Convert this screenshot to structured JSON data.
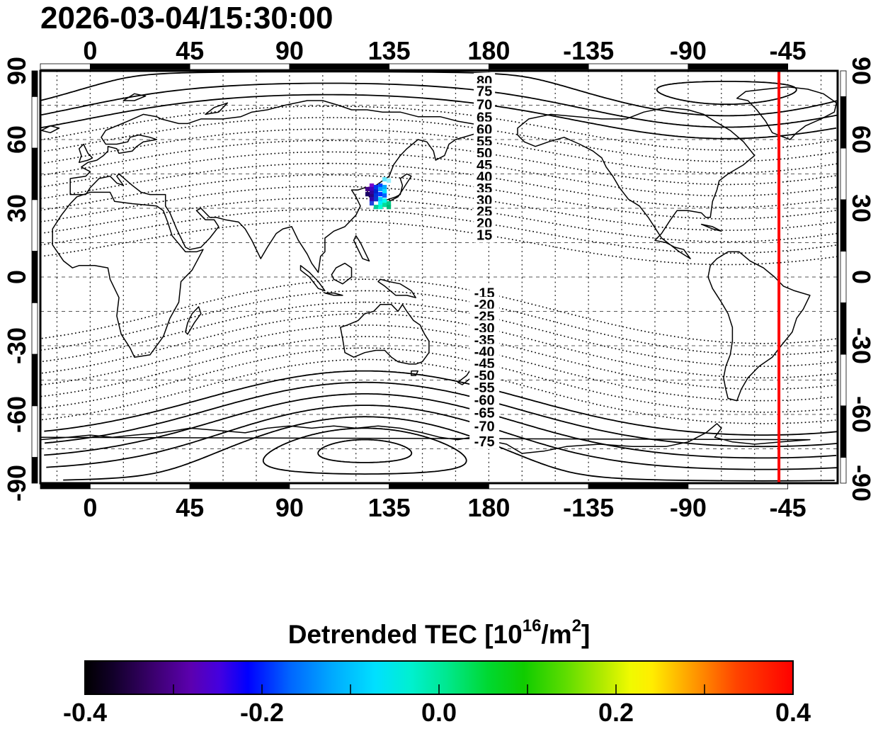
{
  "title": "2026-03-04/15:30:00",
  "chart_data": {
    "type": "map-contour",
    "projection": {
      "lon_min": -22.5,
      "lon_max": 337.5,
      "lat_min": -90,
      "lat_max": 90
    },
    "x_axis": {
      "tick_lons": [
        0,
        45,
        90,
        135,
        180,
        -135,
        -90,
        -45
      ],
      "labels": [
        "0",
        "45",
        "90",
        "135",
        "180",
        "-135",
        "-90",
        "-45"
      ]
    },
    "y_axis": {
      "tick_lats": [
        90,
        60,
        30,
        0,
        -30,
        -60,
        -90
      ],
      "labels": [
        "90",
        "60",
        "30",
        "0",
        "-30",
        "-60",
        "-90"
      ]
    },
    "grid": {
      "lon_step": 15,
      "lat_step": 15,
      "style": "dashed"
    },
    "contours": {
      "levels": [
        85,
        80,
        75,
        70,
        65,
        60,
        55,
        50,
        45,
        40,
        35,
        30,
        25,
        20,
        15,
        -15,
        -20,
        -25,
        -30,
        -35,
        -40,
        -45,
        -50,
        -55,
        -60,
        -65,
        -70,
        -75,
        -80,
        -85
      ],
      "labeled_levels": [
        80,
        75,
        70,
        65,
        60,
        55,
        50,
        45,
        40,
        35,
        30,
        25,
        20,
        15,
        -15,
        -20,
        -25,
        -30,
        -35,
        -40,
        -45,
        -50,
        -55,
        -60,
        -65,
        -70,
        -75
      ],
      "label_lon": 178,
      "solid_if_north_at_least": 70,
      "solid_if_south_at_most": -55
    },
    "red_meridian_lon": -49,
    "red_line_color": "#ff0000",
    "tec_cells": [
      [
        125.2,
        38.4,
        "#440088"
      ],
      [
        125.2,
        36.2,
        "#1a0066"
      ],
      [
        127.1,
        39.9,
        "#7a00cc"
      ],
      [
        127.1,
        38.4,
        "#4400bb"
      ],
      [
        127.1,
        36.8,
        "#330099"
      ],
      [
        127.1,
        35.3,
        "#2a0080"
      ],
      [
        127.1,
        34.0,
        "#3300aa"
      ],
      [
        127.1,
        32.2,
        "#2244dd"
      ],
      [
        129.0,
        39.3,
        "#0033ee"
      ],
      [
        129.0,
        37.4,
        "#0022cc"
      ],
      [
        129.0,
        35.6,
        "#0033dd"
      ],
      [
        129.0,
        34.0,
        "#1133cc"
      ],
      [
        129.0,
        30.6,
        "#00cc99"
      ],
      [
        131.0,
        39.9,
        "#0044ff"
      ],
      [
        131.0,
        38.4,
        "#0099ff"
      ],
      [
        131.0,
        36.2,
        "#0033ff"
      ],
      [
        131.0,
        34.0,
        "#00ccff"
      ],
      [
        131.0,
        32.2,
        "#00eeff"
      ],
      [
        131.0,
        30.6,
        "#00ffcc"
      ],
      [
        132.9,
        42.7,
        "#66e8ff"
      ],
      [
        132.9,
        39.3,
        "#00aaff"
      ],
      [
        132.9,
        37.4,
        "#00ddff"
      ],
      [
        132.9,
        35.6,
        "#0066ff"
      ],
      [
        132.9,
        33.4,
        "#00ffee"
      ],
      [
        132.9,
        31.5,
        "#00dd99"
      ],
      [
        134.8,
        42.1,
        "#99f0ff"
      ],
      [
        134.8,
        32.2,
        "#00cc88"
      ],
      [
        134.8,
        30.6,
        "#00bb77"
      ]
    ],
    "colorbar": {
      "title_parts": {
        "prefix": "Detrended TEC  [10",
        "sup1": "16",
        "mid": "/m",
        "sup2": "2",
        "suffix": "]"
      },
      "range": [
        -0.4,
        0.4
      ],
      "tick_values": [
        -0.4,
        -0.2,
        0.0,
        0.2,
        0.4
      ],
      "tick_labels": [
        "-0.4",
        "-0.2",
        "0.0",
        "0.2",
        "0.4"
      ],
      "minor_ticks": [
        -0.3,
        -0.2,
        -0.1,
        0.0,
        0.1,
        0.2,
        0.3
      ],
      "gradient": [
        [
          "0%",
          "#000000"
        ],
        [
          "4%",
          "#12002a"
        ],
        [
          "10%",
          "#3d0072"
        ],
        [
          "15%",
          "#5c00b0"
        ],
        [
          "19%",
          "#4400e0"
        ],
        [
          "23%",
          "#0000ff"
        ],
        [
          "29%",
          "#0066ff"
        ],
        [
          "35%",
          "#00aaff"
        ],
        [
          "41%",
          "#00e0ff"
        ],
        [
          "46%",
          "#00f0d0"
        ],
        [
          "51%",
          "#00e890"
        ],
        [
          "57%",
          "#00d830"
        ],
        [
          "62%",
          "#10cc00"
        ],
        [
          "68%",
          "#60dd00"
        ],
        [
          "73%",
          "#b0ea00"
        ],
        [
          "77%",
          "#f0fa00"
        ],
        [
          "80%",
          "#ffee00"
        ],
        [
          "86%",
          "#ff9900"
        ],
        [
          "92%",
          "#ff4400"
        ],
        [
          "100%",
          "#ff0000"
        ]
      ]
    }
  }
}
